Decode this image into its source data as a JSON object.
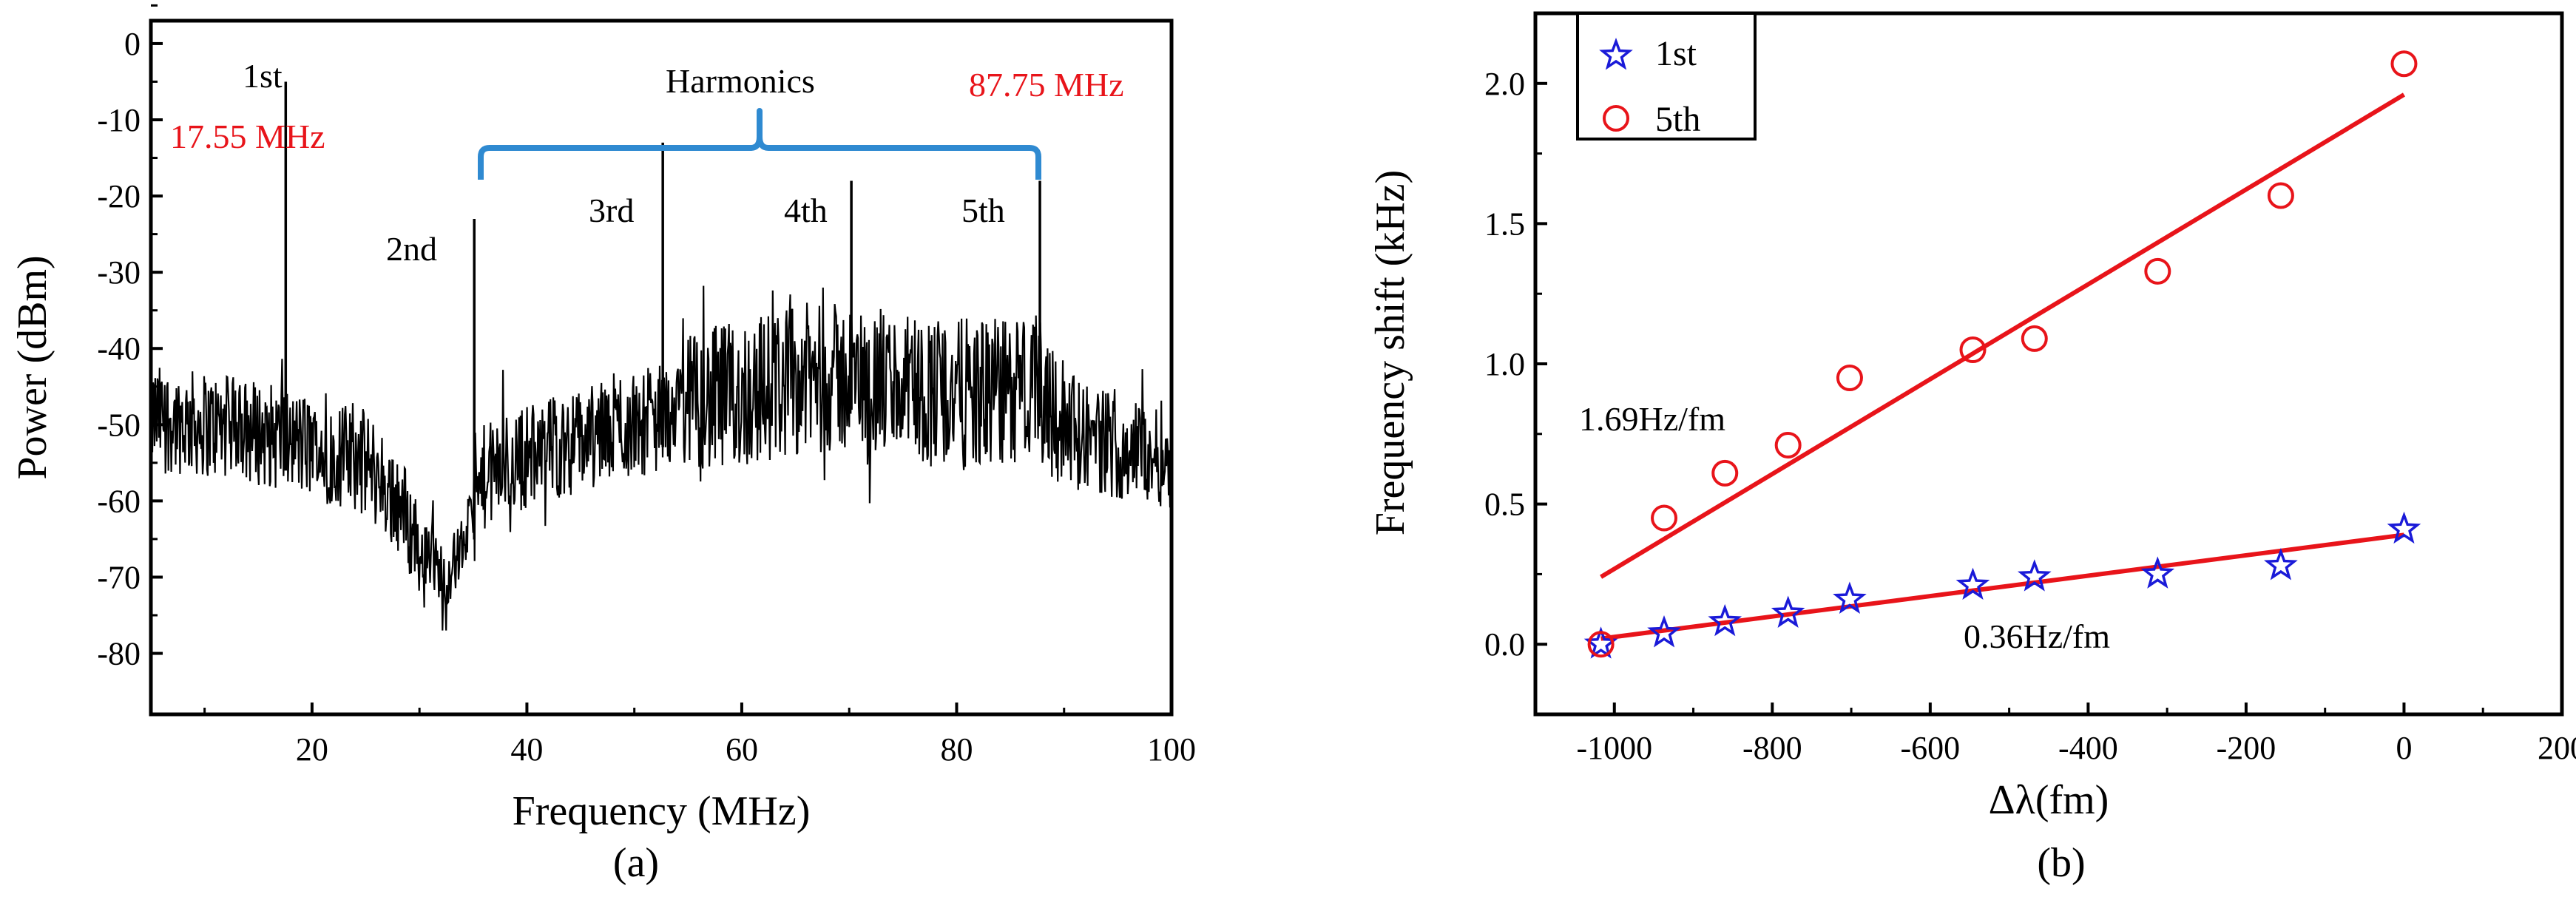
{
  "chart_data": [
    {
      "id": "a",
      "type": "line",
      "panel_label": "(a)",
      "xlabel": "Frequency (MHz)",
      "ylabel": "Power (dBm)",
      "xlim": [
        5,
        100
      ],
      "ylim": [
        -88,
        3
      ],
      "xticks": [
        20,
        40,
        60,
        80,
        100
      ],
      "yticks": [
        0,
        -10,
        -20,
        -30,
        -40,
        -50,
        -60,
        -70,
        -80
      ],
      "baseline_profile": [
        [
          5,
          -49
        ],
        [
          10,
          -50
        ],
        [
          15,
          -51
        ],
        [
          20,
          -53
        ],
        [
          25,
          -55
        ],
        [
          28,
          -60
        ],
        [
          30,
          -66
        ],
        [
          32.5,
          -70
        ],
        [
          34,
          -66
        ],
        [
          36,
          -57
        ],
        [
          40,
          -54
        ],
        [
          45,
          -52
        ],
        [
          50,
          -50
        ],
        [
          55,
          -48
        ],
        [
          60,
          -46
        ],
        [
          65,
          -44
        ],
        [
          70,
          -44
        ],
        [
          75,
          -45
        ],
        [
          80,
          -46
        ],
        [
          85,
          -46
        ],
        [
          88,
          -45
        ],
        [
          90,
          -50
        ],
        [
          95,
          -53
        ],
        [
          100,
          -54
        ]
      ],
      "noise_floor": -77,
      "peaks": [
        {
          "name": "1st",
          "x": 17.55,
          "y": -5
        },
        {
          "name": "2nd",
          "x": 35.1,
          "y": -23
        },
        {
          "name": "3rd",
          "x": 52.65,
          "y": -13
        },
        {
          "name": "4th",
          "x": 70.2,
          "y": -18
        },
        {
          "name": "5th",
          "x": 87.75,
          "y": -18
        }
      ],
      "annotations": {
        "first": "1st",
        "first_freq": "17.55 MHz",
        "second": "2nd",
        "third": "3rd",
        "fourth": "4th",
        "fifth": "5th",
        "harmonics": "Harmonics",
        "fifth_freq": "87.75 MHz"
      },
      "colors": {
        "trace": "#000000",
        "brace": "#2f8ad1",
        "highlight": "#e8141a"
      }
    },
    {
      "id": "b",
      "type": "scatter",
      "panel_label": "(b)",
      "xlabel": "Δλ(fm)",
      "ylabel": "Frequency shift (kHz)",
      "xlim": [
        -1100,
        200
      ],
      "ylim": [
        -0.25,
        2.25
      ],
      "xticks": [
        -1000,
        -800,
        -600,
        -400,
        -200,
        0,
        200
      ],
      "yticks": [
        0.0,
        0.5,
        1.0,
        1.5,
        2.0
      ],
      "ytick_labels": [
        "0.0",
        "0.5",
        "1.0",
        "1.5",
        "2.0"
      ],
      "legend": {
        "position": "top-left",
        "entries": [
          "1st",
          "5th"
        ]
      },
      "series": [
        {
          "name": "1st",
          "marker": "star",
          "color": "#1a1ad8",
          "x": [
            -1017,
            -937,
            -860,
            -780,
            -702,
            -546,
            -468,
            -312,
            -156,
            0
          ],
          "y": [
            0.0,
            0.04,
            0.08,
            0.11,
            0.16,
            0.21,
            0.24,
            0.25,
            0.28,
            0.41
          ],
          "fit": {
            "x": [
              -1017,
              0
            ],
            "y": [
              0.02,
              0.39
            ],
            "label": "0.36Hz/fm"
          }
        },
        {
          "name": "5th",
          "marker": "circle",
          "color": "#e8141a",
          "x": [
            -1017,
            -937,
            -860,
            -780,
            -702,
            -546,
            -468,
            -312,
            -156,
            0
          ],
          "y": [
            0.0,
            0.45,
            0.61,
            0.71,
            0.95,
            1.05,
            1.09,
            1.33,
            1.6,
            2.07
          ],
          "fit": {
            "x": [
              -1017,
              0
            ],
            "y": [
              0.24,
              1.96
            ],
            "label": "1.69Hz/fm"
          }
        }
      ],
      "colors": {
        "fit": "#e8141a"
      }
    }
  ]
}
